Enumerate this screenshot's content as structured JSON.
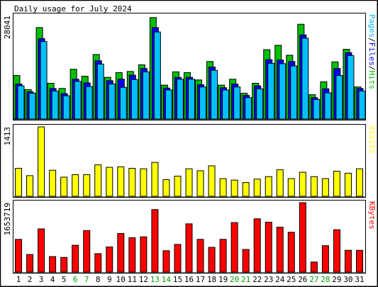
{
  "chart_data": {
    "type": "bar",
    "title": "Daily usage for July 2024",
    "categories": [
      "1",
      "2",
      "3",
      "4",
      "5",
      "6",
      "7",
      "8",
      "9",
      "10",
      "11",
      "12",
      "13",
      "14",
      "15",
      "16",
      "17",
      "18",
      "19",
      "20",
      "21",
      "22",
      "23",
      "24",
      "25",
      "26",
      "27",
      "28",
      "29",
      "30",
      "31"
    ],
    "weekend_days": [
      6,
      7,
      13,
      14,
      20,
      21,
      27,
      28
    ],
    "panels": [
      {
        "name": "Pages/Files/Hits",
        "ymax_label": "28041",
        "ymax": 28041,
        "series": [
          {
            "name": "Hits",
            "color": "#00C000",
            "values": [
              11800,
              8000,
              24800,
              9700,
              8300,
              13500,
              11600,
              17500,
              11300,
              12600,
              12900,
              14700,
              27500,
              9200,
              12800,
              12600,
              10600,
              15600,
              9200,
              10800,
              7000,
              9700,
              18800,
              20000,
              17300,
              25700,
              6600,
              10100,
              15500,
              18900,
              8700
            ]
          },
          {
            "name": "Files",
            "color": "#0000FF",
            "values": [
              9500,
              7400,
              21800,
              8300,
              6900,
              10800,
              9800,
              15800,
              10400,
              10800,
              11900,
              13700,
              24800,
              8400,
              11300,
              11300,
              9300,
              14100,
              8500,
              9500,
              6400,
              9000,
              16100,
              16000,
              15600,
              22800,
              5800,
              8200,
              13700,
              18000,
              8300
            ]
          },
          {
            "name": "Pages",
            "color": "#00C0FF",
            "values": [
              9000,
              7000,
              21000,
              7600,
              6300,
              10200,
              8800,
              14900,
              9500,
              8600,
              10700,
              12800,
              23600,
              7900,
              10800,
              10800,
              8700,
              13200,
              7900,
              8700,
              5800,
              8200,
              15100,
              15000,
              14400,
              21900,
              5300,
              7100,
              11800,
              17200,
              7600
            ]
          }
        ]
      },
      {
        "name": "Visits",
        "ymax_label": "1413",
        "ymax": 1413,
        "series": [
          {
            "name": "Visits",
            "color": "#FFFF00",
            "values": [
              570,
              420,
              1413,
              530,
              390,
              440,
              440,
              640,
              590,
              600,
              570,
              560,
              690,
              340,
              410,
              560,
              520,
              620,
              360,
              330,
              280,
              350,
              400,
              540,
              360,
              490,
              400,
              360,
              510,
              470,
              560
            ]
          }
        ]
      },
      {
        "name": "KBytes",
        "ymax_label": "1653719",
        "ymax": 1653719,
        "series": [
          {
            "name": "KBytes",
            "color": "#FF0000",
            "values": [
              780000,
              420000,
              1030000,
              370000,
              350000,
              640000,
              990000,
              440000,
              600000,
              920000,
              820000,
              840000,
              1490000,
              510000,
              660000,
              1150000,
              780000,
              590000,
              780000,
              1180000,
              540000,
              1270000,
              1190000,
              1070000,
              950000,
              1653719,
              240000,
              630000,
              1010000,
              520000,
              520000
            ]
          }
        ]
      }
    ]
  }
}
